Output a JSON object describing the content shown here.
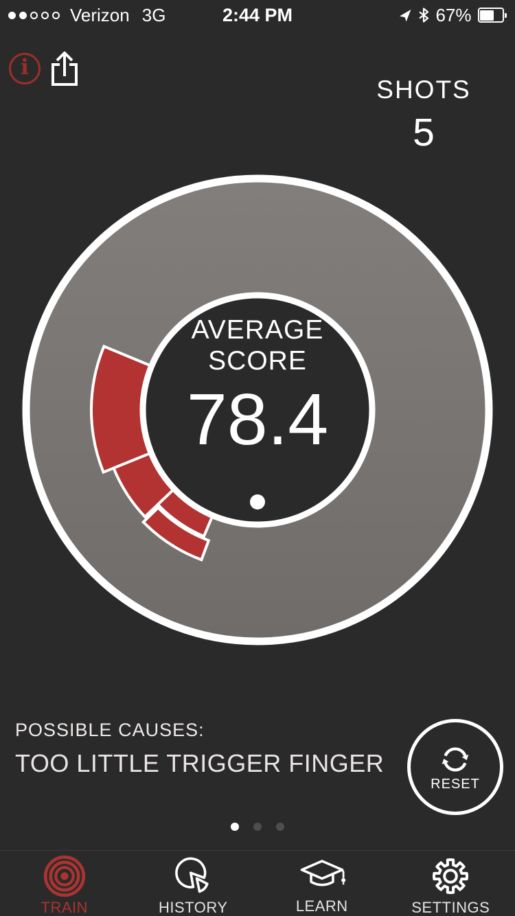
{
  "status_bar": {
    "carrier": "Verizon",
    "network": "3G",
    "time": "2:44 PM",
    "battery_percent": "67%",
    "battery_fill_ratio": 0.65,
    "signal": {
      "filled": 2,
      "total": 5
    }
  },
  "header": {
    "info_glyph": "i",
    "shots_label": "SHOTS",
    "shots_value": "5"
  },
  "gauge": {
    "title_line1": "AVERAGE",
    "title_line2": "SCORE",
    "score": "78.4",
    "segments": [
      {
        "start": 157.5,
        "end": 202,
        "inner": 150,
        "outer": 242
      },
      {
        "start": 202,
        "end": 223.5,
        "inner": 150,
        "outer": 226
      },
      {
        "start": 223.5,
        "end": 247,
        "inner": 150,
        "outer": 200
      },
      {
        "start": 224.5,
        "end": 249.5,
        "inner": 203,
        "outer": 233
      }
    ]
  },
  "analysis": {
    "causes_label": "POSSIBLE CAUSES:",
    "cause_text": "TOO LITTLE TRIGGER FINGER",
    "reset_label": "RESET"
  },
  "pagination": {
    "total": 3,
    "active_index": 0
  },
  "tab_bar": {
    "items": [
      {
        "label": "TRAIN",
        "active": true
      },
      {
        "label": "HISTORY",
        "active": false
      },
      {
        "label": "LEARN",
        "active": false
      },
      {
        "label": "SETTINGS",
        "active": false
      }
    ]
  },
  "colors": {
    "background": "#2b2a2a",
    "segment_red": "#b23331",
    "tab_active_red": "#a93430",
    "info_red": "#9a2f2b",
    "disc_gray_top": "#827e7c",
    "disc_gray_bottom": "#6f6c6a",
    "inactive_dot": "#4e4e4e"
  }
}
